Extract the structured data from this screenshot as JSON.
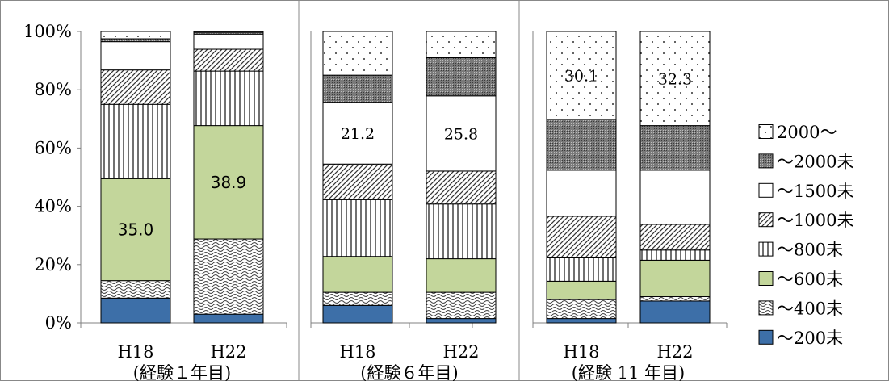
{
  "chart_data": {
    "type": "bar",
    "stacked": true,
    "percent": true,
    "y_ticks": [
      "0%",
      "20%",
      "40%",
      "60%",
      "80%",
      "100%"
    ],
    "ylim": [
      0,
      100
    ],
    "grid": false,
    "legend_position": "right",
    "categories_order": [
      "～200未",
      "～400未",
      "～600未",
      "～800未",
      "～1000未",
      "～1500未",
      "～2000未",
      "2000～"
    ],
    "legend": [
      "2000～",
      "～2000未",
      "～1500未",
      "～1000未",
      "～800未",
      "～600未",
      "～400未",
      "～200未"
    ],
    "colors": {
      "～200未": "#3d6fa8",
      "～600未": "#c3d69b"
    },
    "panels": [
      {
        "group_label": "(経験１年目)",
        "bars": [
          {
            "x": "H18",
            "values": [
              8.5,
              6.0,
              35.0,
              25.5,
              11.8,
              9.7,
              1.0,
              2.5
            ],
            "labels": {
              "～600未": "35.0"
            }
          },
          {
            "x": "H22",
            "values": [
              3.0,
              25.8,
              38.9,
              18.7,
              7.5,
              5.2,
              0.6,
              0.3
            ],
            "labels": {
              "～600未": "38.9"
            }
          }
        ]
      },
      {
        "group_label": "(経験６年目)",
        "bars": [
          {
            "x": "H18",
            "values": [
              6.0,
              4.5,
              12.3,
              19.5,
              12.2,
              21.2,
              9.3,
              15.0
            ],
            "labels": {
              "～1500未": "21.2"
            }
          },
          {
            "x": "H22",
            "values": [
              1.5,
              9.0,
              11.5,
              18.8,
              11.3,
              25.8,
              13.1,
              9.0
            ],
            "labels": {
              "～1500未": "25.8"
            }
          }
        ]
      },
      {
        "group_label": "(経験 11 年目)",
        "bars": [
          {
            "x": "H18",
            "values": [
              1.5,
              6.5,
              6.3,
              8.0,
              14.3,
              15.8,
              17.5,
              30.1
            ],
            "labels": {
              "2000～": "30.1"
            }
          },
          {
            "x": "H22",
            "values": [
              7.5,
              1.5,
              12.5,
              3.5,
              8.8,
              18.6,
              15.3,
              32.3
            ],
            "labels": {
              "2000～": "32.3"
            }
          }
        ]
      }
    ]
  }
}
